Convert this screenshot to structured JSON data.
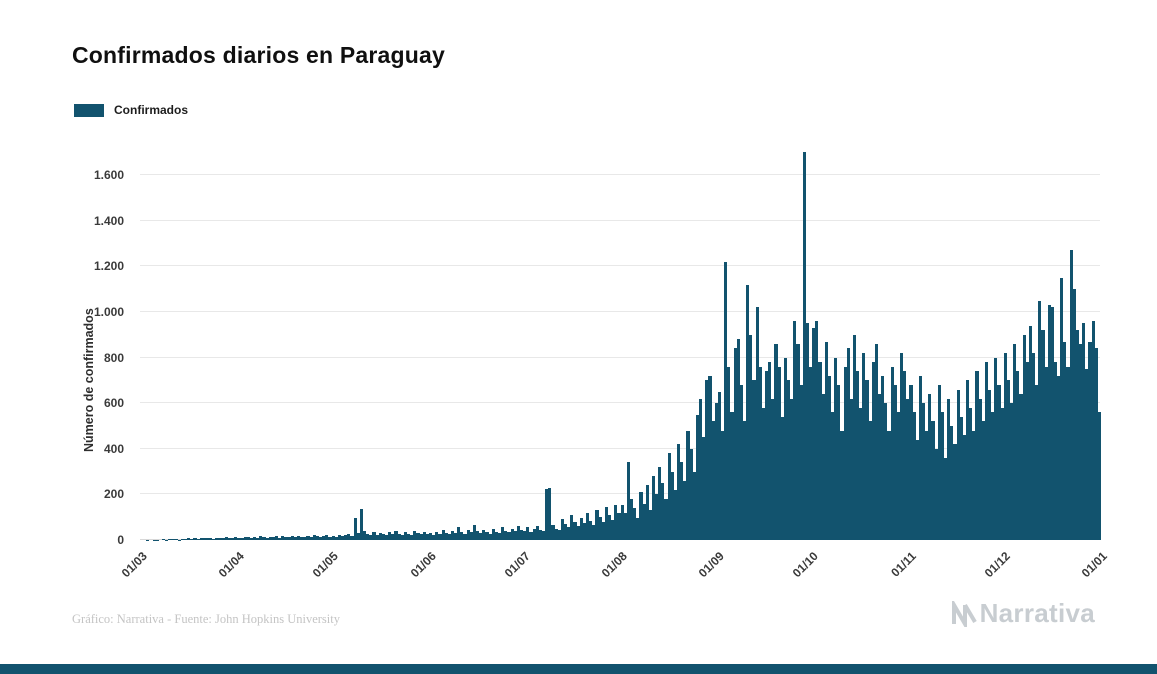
{
  "page": {
    "title": "Confirmados diarios en Paraguay",
    "footer_credit": "Gráfico: Narrativa - Fuente: John Hopkins University",
    "brand": "Narrativa"
  },
  "chart_data": {
    "type": "bar",
    "title": "Confirmados diarios en Paraguay",
    "xlabel": "",
    "ylabel": "Número de confirmados",
    "ylim": [
      0,
      1750
    ],
    "grid": "horizontal",
    "legend_position": "top-left",
    "bar_color": "#12536e",
    "y_ticks": [
      "0",
      "200",
      "400",
      "600",
      "800",
      "1.000",
      "1.200",
      "1.400",
      "1.600"
    ],
    "y_tick_values": [
      0,
      200,
      400,
      600,
      800,
      1000,
      1200,
      1400,
      1600
    ],
    "x_ticks": [
      {
        "label": "01/03",
        "day_index": 0
      },
      {
        "label": "01/04",
        "day_index": 31
      },
      {
        "label": "01/05",
        "day_index": 61
      },
      {
        "label": "01/06",
        "day_index": 92
      },
      {
        "label": "01/07",
        "day_index": 122
      },
      {
        "label": "01/08",
        "day_index": 153
      },
      {
        "label": "01/09",
        "day_index": 184
      },
      {
        "label": "01/10",
        "day_index": 214
      },
      {
        "label": "01/11",
        "day_index": 245
      },
      {
        "label": "01/12",
        "day_index": 275
      },
      {
        "label": "01/01",
        "day_index": 306
      }
    ],
    "series": [
      {
        "name": "Confirmados",
        "color": "#12536e",
        "values": [
          0,
          0,
          1,
          0,
          2,
          1,
          0,
          3,
          2,
          4,
          3,
          5,
          2,
          6,
          4,
          7,
          5,
          8,
          6,
          9,
          7,
          10,
          8,
          6,
          9,
          11,
          8,
          12,
          9,
          10,
          12,
          10,
          8,
          12,
          15,
          9,
          14,
          11,
          16,
          12,
          10,
          15,
          13,
          18,
          11,
          16,
          14,
          12,
          17,
          13,
          19,
          15,
          12,
          18,
          14,
          20,
          16,
          13,
          19,
          22,
          15,
          18,
          14,
          20,
          16,
          22,
          25,
          19,
          95,
          30,
          135,
          40,
          28,
          24,
          35,
          22,
          30,
          26,
          20,
          33,
          25,
          38,
          28,
          22,
          35,
          27,
          24,
          40,
          30,
          26,
          36,
          28,
          30,
          24,
          35,
          28,
          45,
          32,
          26,
          38,
          30,
          55,
          35,
          28,
          42,
          33,
          65,
          38,
          30,
          45,
          35,
          28,
          50,
          36,
          32,
          58,
          40,
          34,
          48,
          38,
          62,
          44,
          40,
          55,
          35,
          48,
          60,
          42,
          38,
          225,
          230,
          65,
          50,
          45,
          90,
          70,
          55,
          110,
          80,
          60,
          95,
          75,
          120,
          85,
          65,
          130,
          100,
          78,
          145,
          110,
          88,
          155,
          120,
          155,
          120,
          340,
          180,
          140,
          95,
          210,
          160,
          240,
          130,
          280,
          200,
          320,
          250,
          180,
          380,
          300,
          220,
          420,
          340,
          260,
          480,
          400,
          300,
          550,
          620,
          450,
          700,
          720,
          520,
          600,
          650,
          480,
          1220,
          760,
          560,
          840,
          880,
          680,
          520,
          1120,
          900,
          700,
          1020,
          760,
          580,
          740,
          780,
          620,
          860,
          760,
          540,
          800,
          700,
          620,
          960,
          860,
          680,
          1700,
          950,
          760,
          930,
          960,
          780,
          640,
          870,
          720,
          560,
          800,
          680,
          480,
          760,
          840,
          620,
          900,
          740,
          580,
          820,
          700,
          520,
          780,
          860,
          640,
          720,
          600,
          480,
          760,
          680,
          560,
          820,
          740,
          620,
          680,
          560,
          440,
          720,
          600,
          480,
          640,
          520,
          400,
          680,
          560,
          360,
          620,
          500,
          420,
          660,
          540,
          460,
          700,
          580,
          480,
          740,
          620,
          520,
          780,
          660,
          560,
          800,
          680,
          580,
          820,
          700,
          600,
          860,
          740,
          640,
          900,
          780,
          940,
          820,
          680,
          1050,
          920,
          760,
          1030,
          1020,
          780,
          720,
          1150,
          870,
          760,
          1270,
          1100,
          920,
          860,
          950,
          750,
          870,
          960,
          840,
          560
        ]
      }
    ]
  }
}
